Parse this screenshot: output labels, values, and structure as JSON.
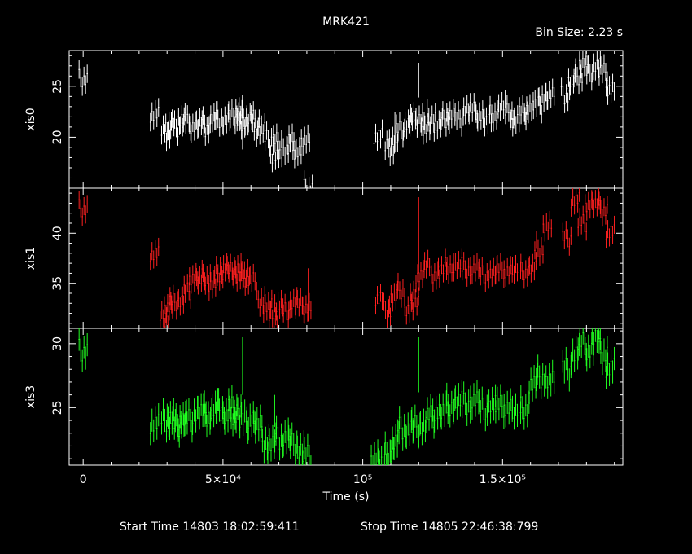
{
  "header": {
    "title": "MRK421",
    "bin_size": "Bin Size: 2.23 s"
  },
  "footer": {
    "start_time": "Start Time 14803 18:02:59:411",
    "stop_time": "Stop Time 14805 22:46:38:799"
  },
  "colors": {
    "background": "#000000",
    "axes": "#ffffff",
    "xis0": "#ffffff",
    "xis1": "#ff2020",
    "xis3": "#20ff20"
  },
  "chart_data": {
    "type": "scatter",
    "title": "MRK421",
    "xlabel": "Time (s)",
    "xlim": [
      -5000,
      193000
    ],
    "x_ticks": [
      0,
      50000,
      100000,
      150000
    ],
    "x_tick_labels": [
      "0",
      "5×10⁴",
      "10⁵",
      "1.5×10⁵"
    ],
    "grid": false,
    "panels": [
      {
        "name": "xis0",
        "ylabel": "xis0",
        "ylim": [
          15,
          28.5
        ],
        "yticks": [
          20,
          25
        ],
        "color": "#ffffff",
        "points": [
          [
            0,
            25.8
          ],
          [
            25500,
            22.1
          ],
          [
            29500,
            20.4
          ],
          [
            31000,
            21.2
          ],
          [
            33000,
            20.9
          ],
          [
            35000,
            21.8
          ],
          [
            37000,
            21.4
          ],
          [
            39500,
            21.2
          ],
          [
            42000,
            21.3
          ],
          [
            44000,
            20.9
          ],
          [
            46500,
            21.8
          ],
          [
            48500,
            21.8
          ],
          [
            51000,
            21.7
          ],
          [
            53500,
            22.0
          ],
          [
            55500,
            22.6
          ],
          [
            56500,
            21.9
          ],
          [
            57500,
            21.5
          ],
          [
            60000,
            21.8
          ],
          [
            61500,
            21.4
          ],
          [
            63500,
            20.6
          ],
          [
            66500,
            19.8
          ],
          [
            68500,
            18.1
          ],
          [
            69500,
            19.6
          ],
          [
            72500,
            18.8
          ],
          [
            74500,
            19.6
          ],
          [
            76500,
            18.7
          ],
          [
            79500,
            19.5
          ],
          [
            80500,
            15.0
          ],
          [
            105500,
            20.0
          ],
          [
            109500,
            18.9
          ],
          [
            111000,
            19.7
          ],
          [
            113500,
            20.7
          ],
          [
            116000,
            21.4
          ],
          [
            118000,
            21.7
          ],
          [
            120500,
            22.0
          ],
          [
            122500,
            20.6
          ],
          [
            124500,
            22.0
          ],
          [
            127000,
            21.1
          ],
          [
            129500,
            21.8
          ],
          [
            131500,
            22.2
          ],
          [
            134500,
            21.8
          ],
          [
            137000,
            22.8
          ],
          [
            139500,
            22.6
          ],
          [
            142000,
            22.3
          ],
          [
            144500,
            21.4
          ],
          [
            147000,
            22.3
          ],
          [
            149500,
            22.9
          ],
          [
            152500,
            22.4
          ],
          [
            154500,
            21.6
          ],
          [
            157500,
            22.4
          ],
          [
            159500,
            22.9
          ],
          [
            162500,
            23.1
          ],
          [
            164500,
            24.0
          ],
          [
            167000,
            24.0
          ],
          [
            172500,
            24.1
          ],
          [
            174500,
            25.4
          ],
          [
            177000,
            26.0
          ],
          [
            179000,
            27.3
          ],
          [
            181000,
            26.3
          ],
          [
            183500,
            27.1
          ],
          [
            186000,
            26.4
          ],
          [
            188500,
            24.9
          ]
        ],
        "spikes": [
          [
            57000,
            18.8,
            23.0
          ],
          [
            120000,
            23.9,
            27.3
          ],
          [
            111500,
            18.5,
            22.5
          ]
        ]
      },
      {
        "name": "xis1",
        "ylabel": "xis1",
        "ylim": [
          30.5,
          44.5
        ],
        "yticks": [
          35,
          40
        ],
        "color": "#ff2020",
        "points": [
          [
            0,
            42.5
          ],
          [
            25500,
            37.8
          ],
          [
            29000,
            31.5
          ],
          [
            30500,
            32.6
          ],
          [
            32500,
            33.1
          ],
          [
            35000,
            33.3
          ],
          [
            37000,
            34.2
          ],
          [
            39500,
            35.7
          ],
          [
            42000,
            35.2
          ],
          [
            44000,
            35.6
          ],
          [
            46500,
            34.8
          ],
          [
            48500,
            36.0
          ],
          [
            50500,
            36.5
          ],
          [
            53000,
            36.2
          ],
          [
            55000,
            36.5
          ],
          [
            56500,
            35.5
          ],
          [
            58000,
            36.1
          ],
          [
            60000,
            35.2
          ],
          [
            63500,
            33.4
          ],
          [
            66000,
            32.6
          ],
          [
            68000,
            31.5
          ],
          [
            70000,
            32.8
          ],
          [
            72500,
            32.2
          ],
          [
            75000,
            33.1
          ],
          [
            77500,
            32.8
          ],
          [
            80000,
            32.7
          ],
          [
            105500,
            33.2
          ],
          [
            109000,
            32.3
          ],
          [
            111000,
            33.5
          ],
          [
            113500,
            34.3
          ],
          [
            116500,
            32.4
          ],
          [
            118500,
            33.5
          ],
          [
            120500,
            35.8
          ],
          [
            123000,
            36.6
          ],
          [
            126000,
            35.9
          ],
          [
            128500,
            36.2
          ],
          [
            131000,
            36.7
          ],
          [
            134000,
            36.7
          ],
          [
            137000,
            36.4
          ],
          [
            140000,
            36.5
          ],
          [
            143000,
            35.9
          ],
          [
            146500,
            36.2
          ],
          [
            149000,
            36.3
          ],
          [
            152000,
            36.4
          ],
          [
            155000,
            36.3
          ],
          [
            158000,
            36.2
          ],
          [
            160500,
            36.4
          ],
          [
            163000,
            38.5
          ],
          [
            166000,
            40.7
          ],
          [
            173000,
            39.5
          ],
          [
            176000,
            43.4
          ],
          [
            178500,
            41.0
          ],
          [
            181000,
            43.0
          ],
          [
            183500,
            42.8
          ],
          [
            186000,
            42.4
          ],
          [
            188500,
            40.0
          ]
        ],
        "spikes": [
          [
            120000,
            36.0,
            43.6
          ],
          [
            80500,
            31.2,
            36.5
          ]
        ]
      },
      {
        "name": "xis3",
        "ylabel": "xis3",
        "ylim": [
          20.5,
          31.2
        ],
        "yticks": [
          25,
          30
        ],
        "color": "#20ff20",
        "points": [
          [
            0,
            29.5
          ],
          [
            25500,
            23.6
          ],
          [
            29500,
            24.0
          ],
          [
            31500,
            24.2
          ],
          [
            33500,
            23.6
          ],
          [
            35500,
            24.1
          ],
          [
            37500,
            24.0
          ],
          [
            40000,
            24.6
          ],
          [
            42500,
            24.6
          ],
          [
            44500,
            24.4
          ],
          [
            47000,
            24.8
          ],
          [
            49000,
            24.8
          ],
          [
            51500,
            24.4
          ],
          [
            53500,
            25.0
          ],
          [
            55000,
            24.5
          ],
          [
            57500,
            23.9
          ],
          [
            60000,
            24.2
          ],
          [
            62500,
            23.5
          ],
          [
            65000,
            22.4
          ],
          [
            67500,
            22.1
          ],
          [
            70000,
            22.6
          ],
          [
            72500,
            22.7
          ],
          [
            75000,
            22.1
          ],
          [
            77500,
            21.7
          ],
          [
            80000,
            21.2
          ],
          [
            104500,
            21.2
          ],
          [
            107000,
            20.5
          ],
          [
            109500,
            21.4
          ],
          [
            111500,
            22.2
          ],
          [
            114000,
            23.4
          ],
          [
            116500,
            23.3
          ],
          [
            119000,
            23.5
          ],
          [
            121500,
            23.6
          ],
          [
            124000,
            24.3
          ],
          [
            126500,
            24.8
          ],
          [
            129000,
            24.6
          ],
          [
            131500,
            25.2
          ],
          [
            134000,
            25.4
          ],
          [
            137000,
            25.3
          ],
          [
            140000,
            25.6
          ],
          [
            143000,
            24.9
          ],
          [
            146000,
            25.3
          ],
          [
            149000,
            25.1
          ],
          [
            152000,
            25.2
          ],
          [
            155000,
            24.6
          ],
          [
            158000,
            25.0
          ],
          [
            161000,
            26.8
          ],
          [
            163500,
            27.4
          ],
          [
            167000,
            27.2
          ],
          [
            173000,
            28.0
          ],
          [
            176000,
            29.3
          ],
          [
            178500,
            30.0
          ],
          [
            181000,
            29.6
          ],
          [
            183500,
            30.4
          ],
          [
            186000,
            29.3
          ],
          [
            188500,
            28.0
          ]
        ],
        "spikes": [
          [
            57000,
            26.0,
            30.5
          ],
          [
            120000,
            26.2,
            30.5
          ],
          [
            68500,
            23.5,
            26.0
          ]
        ]
      }
    ]
  }
}
